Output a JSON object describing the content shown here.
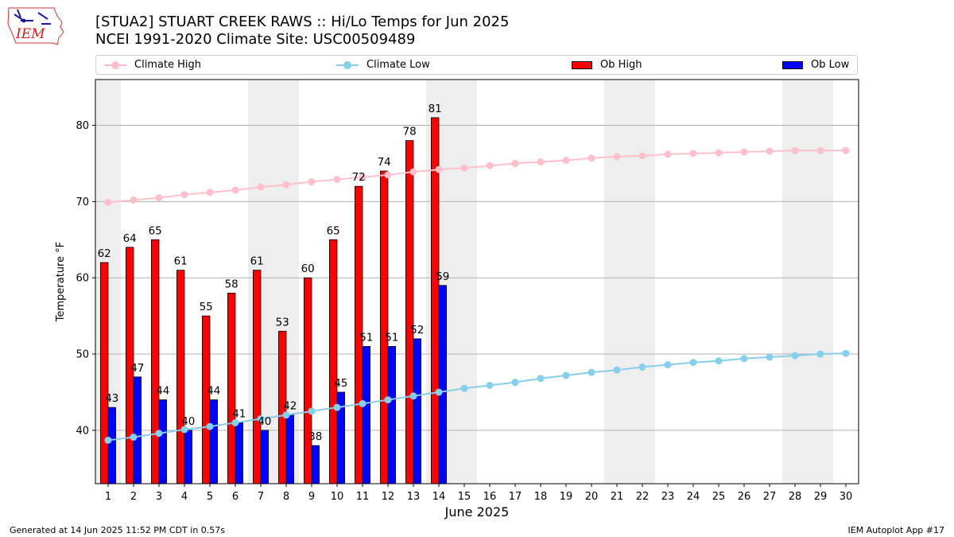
{
  "header": {
    "title_line1": "[STUA2] STUART CREEK RAWS :: Hi/Lo Temps for Jun 2025",
    "title_line2": "NCEI 1991-2020 Climate Site: USC00509489",
    "logo_text": "IEM"
  },
  "legend": {
    "climate_high": "Climate High",
    "climate_low": "Climate Low",
    "ob_high": "Ob High",
    "ob_low": "Ob Low"
  },
  "footer": {
    "left": "Generated at 14 Jun 2025 11:52 PM CDT in 0.57s",
    "right": "IEM Autoplot App #17"
  },
  "colors": {
    "climate_high": "#ffc0cb",
    "climate_low": "#87ceeb",
    "ob_high": "#ff0000",
    "ob_low": "#0000ff",
    "weekend_shade": "#eeeeee",
    "grid": "#b0b0b0"
  },
  "chart_data": {
    "type": "bar",
    "xlabel": "June 2025",
    "ylabel": "Temperature °F",
    "ylim": [
      33,
      86
    ],
    "yticks": [
      40,
      50,
      60,
      70,
      80
    ],
    "days": [
      1,
      2,
      3,
      4,
      5,
      6,
      7,
      8,
      9,
      10,
      11,
      12,
      13,
      14,
      15,
      16,
      17,
      18,
      19,
      20,
      21,
      22,
      23,
      24,
      25,
      26,
      27,
      28,
      29,
      30
    ],
    "weekend_days": [
      1,
      7,
      8,
      14,
      15,
      21,
      22,
      28,
      29
    ],
    "ob_high": [
      62,
      64,
      65,
      61,
      55,
      58,
      61,
      53,
      60,
      65,
      72,
      74,
      78,
      81
    ],
    "ob_low": [
      43,
      47,
      44,
      40,
      44,
      41,
      40,
      42,
      38,
      45,
      51,
      51,
      52,
      59
    ],
    "climate_high": [
      69.9,
      70.2,
      70.5,
      70.9,
      71.2,
      71.5,
      71.9,
      72.2,
      72.6,
      72.9,
      73.2,
      73.5,
      73.9,
      74.2,
      74.4,
      74.7,
      75.0,
      75.2,
      75.4,
      75.7,
      75.9,
      76.0,
      76.2,
      76.3,
      76.4,
      76.5,
      76.6,
      76.7,
      76.7,
      76.7
    ],
    "climate_low": [
      38.7,
      39.1,
      39.6,
      40.1,
      40.5,
      41.0,
      41.5,
      42.0,
      42.5,
      43.0,
      43.5,
      44.0,
      44.5,
      45.0,
      45.5,
      45.9,
      46.3,
      46.8,
      47.2,
      47.6,
      47.9,
      48.3,
      48.6,
      48.9,
      49.1,
      49.4,
      49.6,
      49.8,
      50.0,
      50.1
    ],
    "grid": true,
    "legend_position": "top"
  }
}
